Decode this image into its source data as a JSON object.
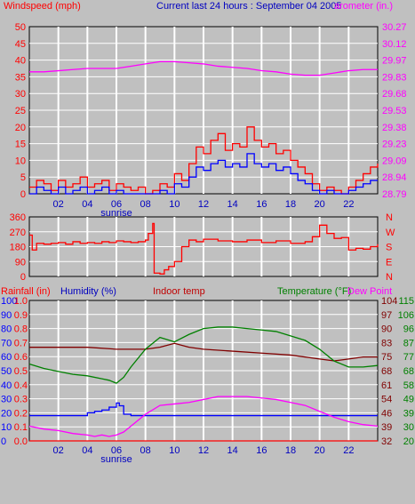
{
  "colors": {
    "background": "#c0c0c0",
    "plot_bg": "#c0c0c0",
    "grid": "#ffffff",
    "wind_avg": "#0000ff",
    "wind_gust": "#ff0000",
    "barometer": "#ff00ff",
    "direction": "#ff0000",
    "humidity": "#0000ff",
    "indoor_temp": "#800000",
    "temperature": "#008000",
    "dew_point": "#ff00ff",
    "rainfall": "#ff0000",
    "header_blue": "#0000c0"
  },
  "x_ticks": [
    "02",
    "04",
    "06",
    "08",
    "10",
    "12",
    "14",
    "16",
    "18",
    "20",
    "22"
  ],
  "sunrise_label": "sunrise",
  "chart_data": [
    {
      "type": "line",
      "title": "Current last 24 hours : September 04 2005",
      "y_left_label": "Windspeed (mph)",
      "y_right_label": "arometer (in.)",
      "y_left_ticks": [
        "50",
        "45",
        "40",
        "35",
        "30",
        "25",
        "20",
        "15",
        "10",
        "5",
        "0"
      ],
      "y_right_ticks": [
        "30.27",
        "30.12",
        "29.97",
        "29.83",
        "29.68",
        "29.53",
        "29.38",
        "29.23",
        "29.09",
        "28.94",
        "28.79"
      ],
      "ylim_left": [
        0,
        50
      ],
      "ylim_right": [
        28.79,
        30.27
      ],
      "x_range_hours": [
        0,
        24
      ],
      "series": [
        {
          "name": "Barometer",
          "axis": "right",
          "x": [
            0,
            1,
            2,
            3,
            4,
            5,
            6,
            7,
            8,
            9,
            10,
            11,
            12,
            13,
            14,
            15,
            16,
            17,
            18,
            19,
            20,
            21,
            22,
            23,
            24
          ],
          "values": [
            29.87,
            29.87,
            29.88,
            29.89,
            29.9,
            29.9,
            29.9,
            29.92,
            29.94,
            29.96,
            29.96,
            29.95,
            29.94,
            29.92,
            29.91,
            29.9,
            29.88,
            29.87,
            29.85,
            29.84,
            29.84,
            29.86,
            29.88,
            29.89,
            29.89
          ]
        },
        {
          "name": "Wind gust",
          "axis": "left",
          "x": [
            0,
            0.5,
            1,
            1.5,
            2,
            2.5,
            3,
            3.5,
            4,
            4.5,
            5,
            5.5,
            6,
            6.5,
            7,
            7.5,
            8,
            8.5,
            9,
            9.5,
            10,
            10.5,
            11,
            11.5,
            12,
            12.5,
            13,
            13.5,
            14,
            14.5,
            15,
            15.5,
            16,
            16.5,
            17,
            17.5,
            18,
            18.5,
            19,
            19.5,
            20,
            20.5,
            21,
            21.5,
            22,
            22.5,
            23,
            23.5,
            24
          ],
          "values": [
            2,
            4,
            3,
            1,
            4,
            2,
            3,
            5,
            2,
            3,
            4,
            1,
            3,
            2,
            1,
            2,
            0,
            1,
            3,
            2,
            6,
            4,
            9,
            14,
            12,
            16,
            18,
            13,
            15,
            14,
            20,
            16,
            14,
            15,
            12,
            13,
            10,
            8,
            6,
            3,
            1,
            2,
            1,
            0,
            2,
            4,
            6,
            8,
            9
          ]
        },
        {
          "name": "Wind average",
          "axis": "left",
          "x": [
            0,
            0.5,
            1,
            1.5,
            2,
            2.5,
            3,
            3.5,
            4,
            4.5,
            5,
            5.5,
            6,
            6.5,
            7,
            7.5,
            8,
            8.5,
            9,
            9.5,
            10,
            10.5,
            11,
            11.5,
            12,
            12.5,
            13,
            13.5,
            14,
            14.5,
            15,
            15.5,
            16,
            16.5,
            17,
            17.5,
            18,
            18.5,
            19,
            19.5,
            20,
            20.5,
            21,
            21.5,
            22,
            22.5,
            23,
            23.5,
            24
          ],
          "values": [
            0,
            2,
            1,
            0,
            2,
            0,
            1,
            2,
            0,
            1,
            2,
            0,
            1,
            0,
            0,
            0,
            0,
            0,
            1,
            0,
            3,
            2,
            5,
            8,
            7,
            9,
            10,
            8,
            9,
            8,
            12,
            9,
            8,
            9,
            7,
            8,
            6,
            4,
            3,
            1,
            0,
            1,
            0,
            0,
            1,
            2,
            3,
            4,
            4
          ]
        }
      ]
    },
    {
      "type": "line",
      "y_left_ticks": [
        "360",
        "270",
        "180",
        "90",
        "0"
      ],
      "y_right_ticks": [
        "N",
        "W",
        "S",
        "E",
        "N"
      ],
      "ylim": [
        0,
        360
      ],
      "series": [
        {
          "name": "Wind direction",
          "x": [
            0,
            0.2,
            0.5,
            1,
            1.5,
            2,
            2.5,
            3,
            3.5,
            4,
            4.5,
            5,
            5.5,
            6,
            6.5,
            7,
            7.5,
            8,
            8.2,
            8.5,
            8.6,
            9,
            9.3,
            9.6,
            10,
            10.5,
            11,
            11.5,
            12,
            13,
            14,
            15,
            16,
            17,
            18,
            19,
            19.5,
            20,
            20.5,
            21,
            21.5,
            22,
            22.5,
            23,
            23.5,
            24
          ],
          "values": [
            250,
            160,
            200,
            195,
            200,
            205,
            195,
            210,
            200,
            205,
            200,
            210,
            205,
            215,
            210,
            205,
            210,
            220,
            260,
            320,
            20,
            15,
            40,
            60,
            90,
            180,
            220,
            210,
            225,
            215,
            210,
            220,
            205,
            215,
            200,
            210,
            240,
            310,
            260,
            230,
            235,
            160,
            170,
            165,
            180,
            195
          ]
        }
      ]
    },
    {
      "type": "line",
      "y_label_rainfall": "Rainfall (in)",
      "y_label_humidity": "Humidity (%)",
      "y_label_indoor": "Indoor temp",
      "y_label_temperature": "Temperature (°F)",
      "y_label_dewpoint": "Dew Point",
      "humidity_ticks": [
        "100",
        "90",
        "80",
        "70",
        "60",
        "50",
        "40",
        "30",
        "20",
        "10",
        "0"
      ],
      "rain_ticks": [
        "1.0",
        "0.9",
        "0.8",
        "0.7",
        "0.6",
        "0.5",
        "0.4",
        "0.3",
        "0.2",
        "0.1",
        "0.0"
      ],
      "indoor_ticks": [
        "104",
        "97",
        "90",
        "83",
        "75",
        "68",
        "61",
        "54",
        "46",
        "39",
        "32"
      ],
      "temp_ticks": [
        "115",
        "106",
        "96",
        "87",
        "77",
        "68",
        "58",
        "49",
        "39",
        "30",
        "20"
      ],
      "ylim_humidity": [
        0,
        100
      ],
      "ylim_rain": [
        0,
        1.0
      ],
      "ylim_indoor": [
        32,
        104
      ],
      "ylim_temp": [
        20,
        115
      ],
      "series": [
        {
          "name": "Humidity",
          "axis": "humidity",
          "x": [
            0,
            2,
            3.9,
            4,
            4.5,
            5,
            5.5,
            6,
            6.2,
            6.5,
            7,
            24
          ],
          "values": [
            18,
            18,
            18,
            20,
            21,
            22,
            24,
            27,
            25,
            19,
            18,
            18
          ]
        },
        {
          "name": "Indoor temp",
          "axis": "indoor",
          "x": [
            0,
            2,
            4,
            6,
            8,
            9,
            10,
            11,
            12,
            14,
            16,
            18,
            20,
            21,
            22,
            23,
            24
          ],
          "values": [
            80,
            80,
            80,
            79,
            79,
            80,
            82,
            80,
            79,
            78,
            77,
            76,
            74,
            73,
            74,
            75,
            75
          ]
        },
        {
          "name": "Temperature",
          "axis": "temp",
          "x": [
            0,
            1,
            2,
            3,
            4,
            5,
            5.5,
            6,
            6.5,
            7,
            8,
            9,
            10,
            11,
            12,
            13,
            14,
            15,
            16,
            17,
            18,
            19,
            20,
            21,
            22,
            23,
            24
          ],
          "values": [
            72,
            69,
            67,
            65,
            64,
            62,
            61,
            59,
            63,
            70,
            82,
            90,
            87,
            92,
            96,
            97,
            97,
            96,
            95,
            94,
            91,
            88,
            82,
            74,
            70,
            70,
            71
          ]
        },
        {
          "name": "Dew Point",
          "axis": "temp",
          "x": [
            0,
            1,
            2,
            3,
            4,
            4.5,
            5,
            5.5,
            6,
            6.5,
            7,
            8,
            9,
            10,
            11,
            12,
            13,
            14,
            15,
            16,
            17,
            18,
            19,
            20,
            21,
            22,
            23,
            24
          ],
          "values": [
            30,
            28,
            27,
            25,
            24,
            23,
            24,
            23,
            24,
            26,
            30,
            38,
            44,
            45,
            46,
            48,
            50,
            50,
            50,
            49,
            48,
            46,
            44,
            40,
            36,
            33,
            31,
            30
          ]
        },
        {
          "name": "Rainfall",
          "axis": "rain",
          "x": [
            0,
            24
          ],
          "values": [
            0,
            0
          ]
        }
      ]
    }
  ]
}
